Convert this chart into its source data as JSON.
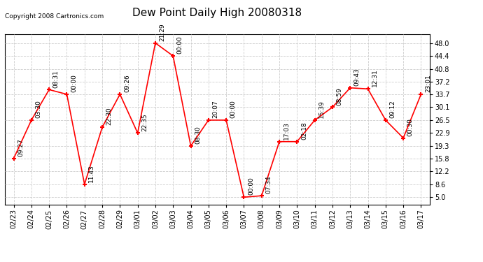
{
  "title": "Dew Point Daily High 20080318",
  "copyright": "Copyright 2008 Cartronics.com",
  "x_labels": [
    "02/23",
    "02/24",
    "02/25",
    "02/26",
    "02/27",
    "02/28",
    "02/29",
    "03/01",
    "03/02",
    "03/03",
    "03/04",
    "03/05",
    "03/06",
    "03/07",
    "03/08",
    "03/09",
    "03/10",
    "03/11",
    "03/12",
    "03/13",
    "03/14",
    "03/15",
    "03/16",
    "03/17"
  ],
  "y_values": [
    15.8,
    26.5,
    35.0,
    33.7,
    8.6,
    24.5,
    33.7,
    22.9,
    48.0,
    44.4,
    19.3,
    26.5,
    26.5,
    5.0,
    5.4,
    20.5,
    20.5,
    26.5,
    30.1,
    35.5,
    35.2,
    26.5,
    21.5,
    33.7
  ],
  "annotations": [
    "09:27",
    "03:30",
    "08:31",
    "00:00",
    "11:43",
    "22:30",
    "09:26",
    "22:35",
    "21:29",
    "00:00",
    "08:30",
    "20:07",
    "00:00",
    "00:00",
    "07:34",
    "17:03",
    "02:18",
    "15:39",
    "08:59",
    "09:43",
    "12:31",
    "09:12",
    "00:30",
    "23:01"
  ],
  "y_ticks": [
    5.0,
    8.6,
    12.2,
    15.8,
    19.3,
    22.9,
    26.5,
    30.1,
    33.7,
    37.2,
    40.8,
    44.4,
    48.0
  ],
  "y_tick_labels": [
    "5.0",
    "8.6",
    "12.2",
    "15.8",
    "19.3",
    "22.9",
    "26.5",
    "30.1",
    "33.7",
    "37.2",
    "40.8",
    "44.4",
    "48.0"
  ],
  "line_color": "#FF0000",
  "bg_color": "#FFFFFF",
  "grid_color": "#CCCCCC",
  "title_fontsize": 11,
  "label_fontsize": 7,
  "annot_fontsize": 6.5
}
